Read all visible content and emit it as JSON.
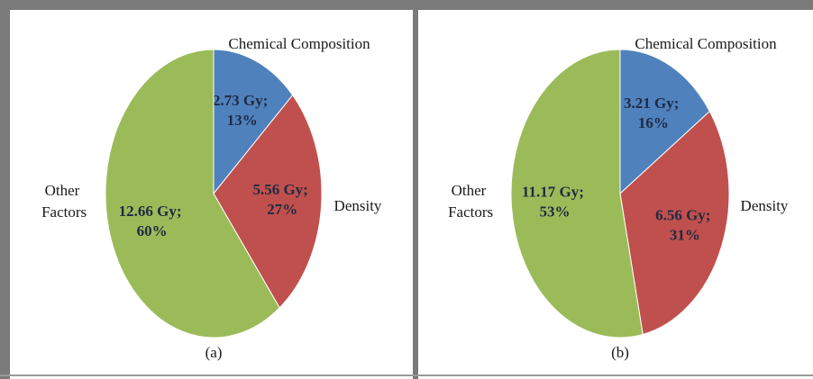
{
  "chart_data": [
    {
      "type": "pie",
      "caption": "(a)",
      "categories": [
        "Chemical Composition",
        "Density",
        "Other Factors"
      ],
      "values": [
        2.73,
        5.56,
        12.66
      ],
      "value_labels": [
        "2.73 Gy; 13%",
        "5.56 Gy; 27%",
        "12.66 Gy; 60%"
      ],
      "colors": [
        "#4f81bd",
        "#c0504d",
        "#9bbb59"
      ]
    },
    {
      "type": "pie",
      "caption": "(b)",
      "categories": [
        "Chemical Composition",
        "Density",
        "Other Factors"
      ],
      "values": [
        3.21,
        6.56,
        11.17
      ],
      "value_labels": [
        "3.21 Gy; 16%",
        "6.56 Gy; 31%",
        "11.17 Gy; 53%"
      ],
      "colors": [
        "#4f81bd",
        "#c0504d",
        "#9bbb59"
      ]
    }
  ]
}
